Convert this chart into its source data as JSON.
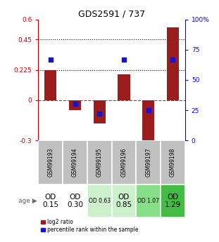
{
  "title": "GDS2591 / 737",
  "samples": [
    "GSM99193",
    "GSM99194",
    "GSM99195",
    "GSM99196",
    "GSM99197",
    "GSM99198"
  ],
  "log2_ratios": [
    0.225,
    -0.075,
    -0.175,
    0.19,
    -0.3,
    0.54
  ],
  "percentile_ranks": [
    67,
    30,
    22,
    67,
    25,
    67
  ],
  "bar_color": "#9B1C1C",
  "dot_color": "#1515c8",
  "ylim_left": [
    -0.3,
    0.6
  ],
  "ylim_right": [
    0,
    100
  ],
  "yticks_left": [
    -0.3,
    0,
    0.225,
    0.45,
    0.6
  ],
  "ytick_labels_left": [
    "-0.3",
    "0",
    "0.225",
    "0.45",
    "0.6"
  ],
  "yticks_right": [
    0,
    25,
    50,
    75,
    100
  ],
  "ytick_labels_right": [
    "0",
    "25",
    "50",
    "75",
    "100%"
  ],
  "hlines": [
    0.225,
    0.45
  ],
  "zero_line_color": "#cc2222",
  "age_labels": [
    "OD\n0.15",
    "OD\n0.30",
    "OD 0.63",
    "OD\n0.85",
    "OD 1.07",
    "OD\n1.29"
  ],
  "age_bg_colors": [
    "#ffffff",
    "#ffffff",
    "#ccf0cc",
    "#ccf0cc",
    "#88dd88",
    "#44bb44"
  ],
  "age_fontsize_large": [
    true,
    true,
    false,
    true,
    false,
    true
  ],
  "gsm_bg_color": "#c0c0c0",
  "label_legend_red": "log2 ratio",
  "label_legend_blue": "percentile rank within the sample"
}
